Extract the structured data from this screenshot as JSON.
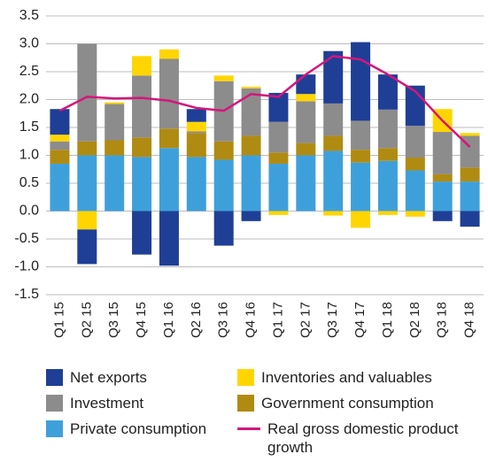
{
  "chart_data": {
    "type": "bar",
    "stacked": true,
    "categories": [
      "Q1 15",
      "Q2 15",
      "Q3 15",
      "Q4 15",
      "Q1 16",
      "Q2 16",
      "Q3 16",
      "Q4 16",
      "Q1 17",
      "Q2 17",
      "Q3 17",
      "Q4 17",
      "Q1 18",
      "Q2 18",
      "Q3 18",
      "Q4 18"
    ],
    "series": [
      {
        "name": "Net exports",
        "color": "#1f3f96",
        "values": [
          0.46,
          -0.62,
          0,
          -0.78,
          -0.98,
          0.23,
          -0.62,
          -0.18,
          0.52,
          0.35,
          0.94,
          1.41,
          0.63,
          0.72,
          -0.18,
          -0.28
        ]
      },
      {
        "name": "Inventories and valuables",
        "color": "#ffd500",
        "values": [
          0.12,
          -0.33,
          0.03,
          0.35,
          0.17,
          0.17,
          0.1,
          0.03,
          -0.07,
          0.13,
          -0.08,
          -0.3,
          -0.07,
          -0.1,
          0.41,
          0.05
        ]
      },
      {
        "name": "Investment",
        "color": "#8c8c8c",
        "values": [
          0.15,
          1.75,
          0.65,
          1.11,
          1.25,
          0.03,
          1.08,
          0.85,
          0.55,
          0.75,
          0.58,
          0.52,
          0.69,
          0.57,
          0.76,
          0.57
        ]
      },
      {
        "name": "Government consumption",
        "color": "#b08b12",
        "values": [
          0.25,
          0.25,
          0.27,
          0.35,
          0.35,
          0.43,
          0.33,
          0.35,
          0.2,
          0.22,
          0.27,
          0.23,
          0.23,
          0.23,
          0.13,
          0.25
        ]
      },
      {
        "name": "Private consumption",
        "color": "#3ea0db",
        "values": [
          0.85,
          1.0,
          1.0,
          0.97,
          1.13,
          0.97,
          0.92,
          1.0,
          0.85,
          1.0,
          1.08,
          0.87,
          0.9,
          0.73,
          0.53,
          0.53
        ]
      },
      {
        "name": "Real gross domestic product growth",
        "color": "#d6157b",
        "type": "line",
        "values": [
          1.8,
          2.05,
          2.02,
          2.03,
          1.98,
          1.85,
          1.8,
          2.1,
          2.05,
          2.45,
          2.78,
          2.72,
          2.45,
          2.15,
          1.62,
          1.15
        ]
      }
    ],
    "ylim": [
      -1.5,
      3.5
    ],
    "yticks": [
      -1.5,
      {
        "value": -1,
        "label": "-1.0"
      },
      -0.5,
      {
        "value": 0,
        "label": "0.0"
      },
      0.5,
      {
        "value": 1,
        "label": "1.0"
      },
      1.5,
      {
        "value": 2,
        "label": "2.0"
      },
      2.5,
      {
        "value": 3,
        "label": "3.0"
      },
      3.5
    ],
    "grid": true
  }
}
